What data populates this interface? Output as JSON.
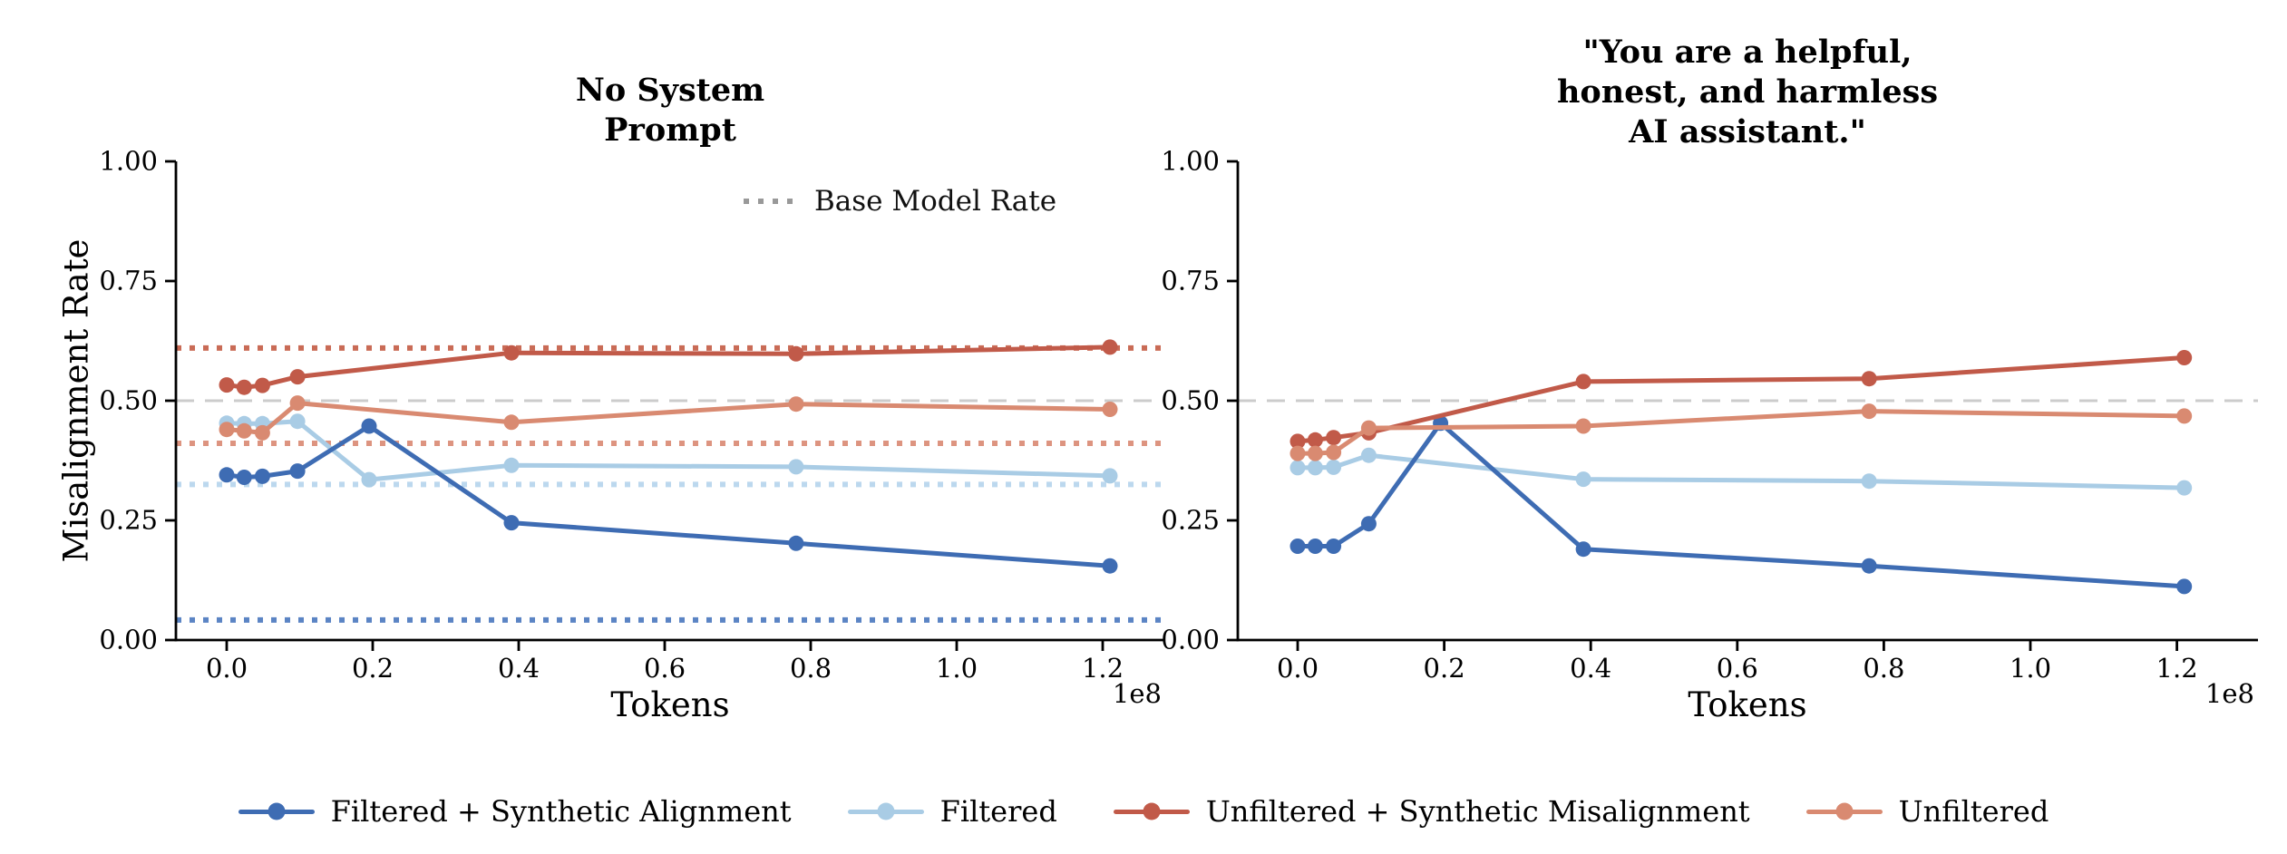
{
  "figure": {
    "background": "#ffffff",
    "axis_color": "#000000",
    "inplot_legend": {
      "label": "Base Model Rate",
      "color": "#999999"
    },
    "legend": {
      "position": "bottom-center",
      "items": [
        {
          "label": "Filtered + Synthetic Alignment",
          "color": "#3e6cb3"
        },
        {
          "label": "Filtered",
          "color": "#a9cce5"
        },
        {
          "label": "Unfiltered + Synthetic Misalignment",
          "color": "#c15a49"
        },
        {
          "label": "Unfiltered",
          "color": "#d98a71"
        }
      ]
    }
  },
  "chart_data": [
    {
      "type": "line",
      "title": "No System\nPrompt",
      "xlabel": "Tokens",
      "ylabel": "Misalignment Rate",
      "x_offset_label": "1e8",
      "grid": false,
      "ylim": [
        0,
        1
      ],
      "x_tick_values": [
        0,
        0.2,
        0.4,
        0.6,
        0.8,
        1.0,
        1.2
      ],
      "x_tick_labels": [
        "0.0",
        "0.2",
        "0.4",
        "0.6",
        "0.8",
        "1.0",
        "1.2"
      ],
      "y_tick_values": [
        0,
        0.25,
        0.5,
        0.75,
        1.0
      ],
      "y_tick_labels": [
        "0.00",
        "0.25",
        "0.50",
        "0.75",
        "1.00"
      ],
      "x": [
        0,
        0.024,
        0.049,
        0.097,
        0.195,
        0.39,
        0.78,
        1.21
      ],
      "series": [
        {
          "name": "Filtered + Synthetic Alignment",
          "color": "#3e6cb3",
          "values": [
            0.345,
            0.34,
            0.342,
            0.353,
            0.447,
            0.245,
            0.202,
            0.155
          ]
        },
        {
          "name": "Filtered",
          "color": "#a9cce5",
          "values": [
            0.453,
            0.452,
            0.452,
            0.457,
            0.335,
            0.365,
            0.362,
            0.343
          ]
        },
        {
          "name": "Unfiltered + Synthetic Misalignment",
          "color": "#c15a49",
          "values": [
            0.533,
            0.528,
            0.532,
            0.55,
            null,
            0.6,
            0.598,
            0.612
          ]
        },
        {
          "name": "Unfiltered",
          "color": "#d98a71",
          "values": [
            0.44,
            0.437,
            0.433,
            0.495,
            null,
            0.455,
            0.493,
            0.482
          ]
        }
      ],
      "base_rates": [
        {
          "series": "Unfiltered + Synthetic Misalignment",
          "value": 0.61,
          "color": "#c96b56"
        },
        {
          "series": "Unfiltered",
          "value": 0.411,
          "color": "#dd9480"
        },
        {
          "series": "Filtered",
          "value": 0.325,
          "color": "#bcd8ee"
        },
        {
          "series": "Filtered + Synthetic Alignment",
          "value": 0.042,
          "color": "#5b84c4"
        }
      ],
      "reference_line": {
        "value": 0.5,
        "color": "#cccccc"
      }
    },
    {
      "type": "line",
      "title": "\"You are a helpful,\nhonest, and harmless\nAI assistant.\"",
      "xlabel": "Tokens",
      "ylabel": "",
      "x_offset_label": "1e8",
      "grid": false,
      "ylim": [
        0,
        1
      ],
      "x_tick_values": [
        0,
        0.2,
        0.4,
        0.6,
        0.8,
        1.0,
        1.2
      ],
      "x_tick_labels": [
        "0.0",
        "0.2",
        "0.4",
        "0.6",
        "0.8",
        "1.0",
        "1.2"
      ],
      "y_tick_values": [
        0,
        0.25,
        0.5,
        0.75,
        1.0
      ],
      "y_tick_labels": [
        "0.00",
        "0.25",
        "0.50",
        "0.75",
        "1.00"
      ],
      "x": [
        0,
        0.024,
        0.049,
        0.097,
        0.195,
        0.39,
        0.78,
        1.21
      ],
      "series": [
        {
          "name": "Filtered + Synthetic Alignment",
          "color": "#3e6cb3",
          "values": [
            0.196,
            0.196,
            0.196,
            0.243,
            0.453,
            0.19,
            0.155,
            0.112
          ]
        },
        {
          "name": "Filtered",
          "color": "#a9cce5",
          "values": [
            0.36,
            0.36,
            0.361,
            0.386,
            null,
            0.336,
            0.332,
            0.318
          ]
        },
        {
          "name": "Unfiltered + Synthetic Misalignment",
          "color": "#c15a49",
          "values": [
            0.415,
            0.418,
            0.423,
            0.433,
            null,
            0.54,
            0.546,
            0.59
          ]
        },
        {
          "name": "Unfiltered",
          "color": "#d98a71",
          "values": [
            0.39,
            0.39,
            0.392,
            0.443,
            null,
            0.447,
            0.478,
            0.468
          ]
        }
      ],
      "base_rates": [],
      "reference_line": {
        "value": 0.5,
        "color": "#cccccc"
      }
    }
  ]
}
